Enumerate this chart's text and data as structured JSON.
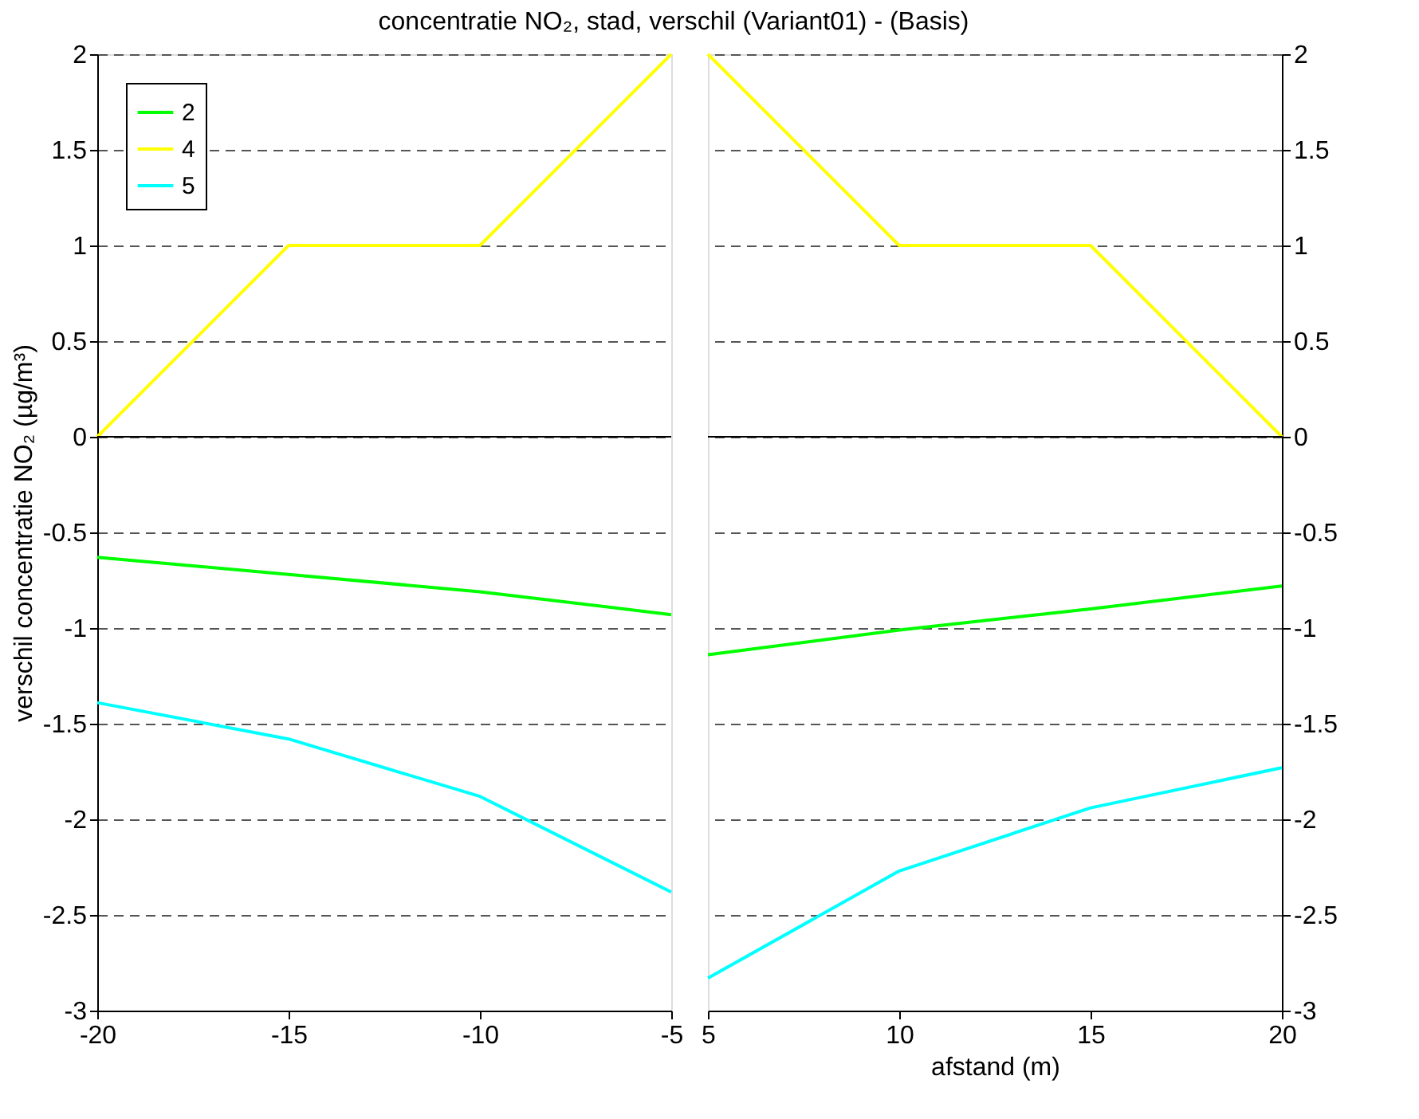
{
  "chart_data": [
    {
      "type": "line",
      "title": "concentratie NO₂, stad, verschil (Variant01) - (Basis)",
      "ylabel": "verschil concentratie NO₂ (µg/m³)",
      "x": [
        -20,
        -15,
        -10,
        -5
      ],
      "xlim": [
        -20,
        -5
      ],
      "xticks": [
        -20,
        -15,
        -10,
        -5
      ],
      "ylim": [
        -3,
        2
      ],
      "yticks": [
        -3,
        -2.5,
        -2,
        -1.5,
        -1,
        -0.5,
        0,
        0.5,
        1,
        1.5,
        2
      ],
      "grid": "y",
      "legend": "top left",
      "ref_lines": [
        {
          "axis": "y",
          "value": 0,
          "color": "#000000"
        }
      ],
      "series": [
        {
          "name": "2",
          "color": "#00ff00",
          "values": [
            -0.63,
            -0.72,
            -0.81,
            -0.93
          ]
        },
        {
          "name": "4",
          "color": "#ffff00",
          "values": [
            0,
            1,
            1,
            2
          ]
        },
        {
          "name": "5",
          "color": "#00ffff",
          "values": [
            -1.39,
            -1.58,
            -1.88,
            -2.38
          ]
        }
      ]
    },
    {
      "type": "line",
      "xlabel": "afstand (m)",
      "x": [
        5,
        10,
        15,
        20
      ],
      "xlim": [
        5,
        20
      ],
      "xticks": [
        5,
        10,
        15,
        20
      ],
      "ylim": [
        -3,
        2
      ],
      "yticks": [
        -3,
        -2.5,
        -2,
        -1.5,
        -1,
        -0.5,
        0,
        0.5,
        1,
        1.5,
        2
      ],
      "grid": "y",
      "ref_lines": [
        {
          "axis": "y",
          "value": 0,
          "color": "#000000"
        }
      ],
      "series": [
        {
          "color": "#00ff00",
          "values": [
            -1.14,
            -1.01,
            -0.9,
            -0.78
          ]
        },
        {
          "color": "#ffff00",
          "values": [
            2,
            1,
            1,
            0
          ]
        },
        {
          "color": "#00ffff",
          "values": [
            -2.83,
            -2.27,
            -1.94,
            -1.73
          ]
        }
      ]
    }
  ]
}
